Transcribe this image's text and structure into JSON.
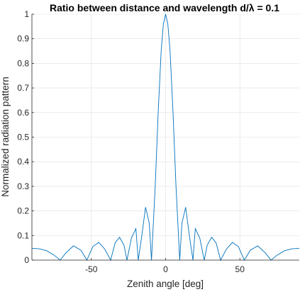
{
  "chart_data": {
    "type": "line",
    "title": "Ratio between distance and wavelength d/λ = 0.1",
    "xlabel": "Zenith angle [deg]",
    "ylabel": "Normalized radiation pattern",
    "xlim": [
      -90,
      90
    ],
    "ylim": [
      0,
      1
    ],
    "xticks": [
      -50,
      0,
      50
    ],
    "xtick_labels": [
      "-50",
      "0",
      "50"
    ],
    "yticks": [
      0,
      0.1,
      0.2,
      0.3,
      0.4,
      0.5,
      0.6,
      0.7,
      0.8,
      0.9,
      1
    ],
    "ytick_labels": [
      "0",
      "0.1",
      "0.2",
      "0.3",
      "0.4",
      "0.5",
      "0.6",
      "0.7",
      "0.8",
      "0.9",
      "1"
    ],
    "grid": true,
    "series": [
      {
        "color": "#0072bd",
        "x": [
          -90,
          -85,
          -80,
          -75,
          -71,
          -67,
          -62,
          -57,
          -53,
          -49,
          -45,
          -41,
          -37,
          -34,
          -31,
          -28,
          -26,
          -23,
          -20,
          -18.4,
          -16,
          -13.5,
          -11,
          -9.5,
          -7,
          -5,
          -3,
          -1.5,
          0,
          1.5,
          3,
          5,
          7,
          9.5,
          11,
          13.5,
          16,
          18.4,
          20,
          23,
          26,
          28,
          31,
          34,
          37,
          41,
          45,
          49,
          53,
          57,
          62,
          67,
          71,
          75,
          80,
          85,
          90
        ],
        "y": [
          0.048,
          0.046,
          0.038,
          0.02,
          0.0,
          0.03,
          0.058,
          0.04,
          0.0,
          0.055,
          0.072,
          0.045,
          0.0,
          0.07,
          0.093,
          0.06,
          0.0,
          0.09,
          0.128,
          0.0,
          0.1,
          0.215,
          0.15,
          0.0,
          0.3,
          0.6,
          0.85,
          0.96,
          1.0,
          0.96,
          0.85,
          0.6,
          0.3,
          0.0,
          0.15,
          0.215,
          0.1,
          0.0,
          0.128,
          0.09,
          0.0,
          0.06,
          0.093,
          0.07,
          0.0,
          0.045,
          0.072,
          0.055,
          0.0,
          0.04,
          0.058,
          0.03,
          0.0,
          0.02,
          0.038,
          0.046,
          0.048
        ]
      }
    ]
  }
}
